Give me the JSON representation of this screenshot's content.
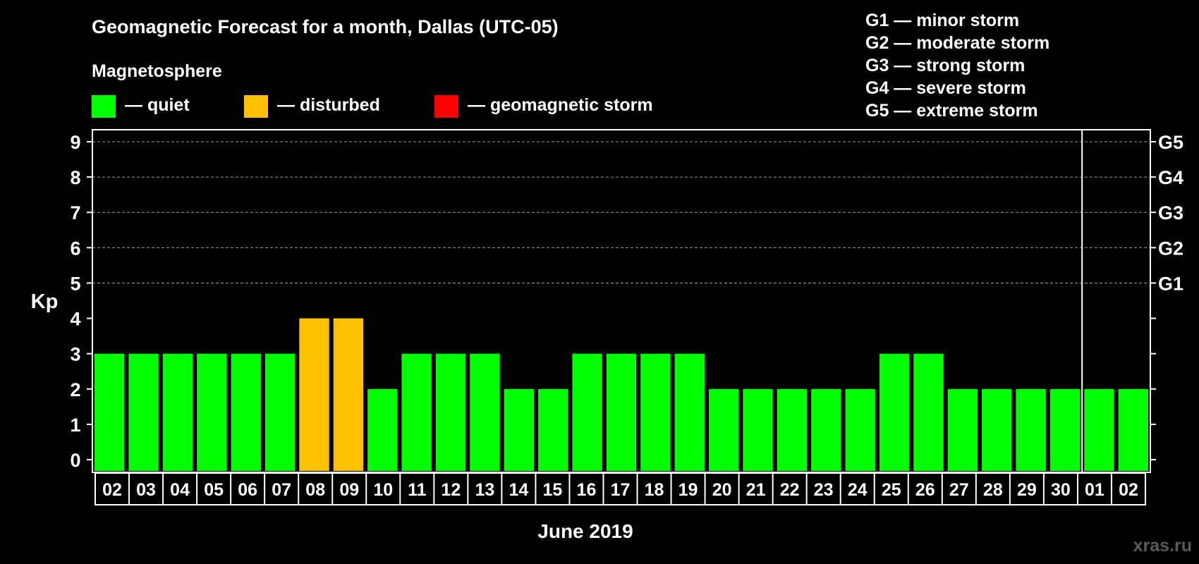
{
  "chart_data": {
    "type": "bar",
    "title": "Geomagnetic Forecast for a month, Dallas (UTC-05)",
    "legend_title": "Magnetosphere",
    "legend": [
      {
        "label": "— quiet",
        "color": "#00ff00"
      },
      {
        "label": "— disturbed",
        "color": "#ffc000"
      },
      {
        "label": "— geomagnetic storm",
        "color": "#ff0000"
      }
    ],
    "storm_scale": [
      "G1 — minor storm",
      "G2 — moderate storm",
      "G3 — strong storm",
      "G4 — severe storm",
      "G5 — extreme storm"
    ],
    "ylabel": "Kp",
    "xlabel": "June 2019",
    "ylim": [
      0,
      9
    ],
    "yticks": [
      "0",
      "1",
      "2",
      "3",
      "4",
      "5",
      "6",
      "7",
      "8",
      "9"
    ],
    "right_axis": [
      {
        "kp": 5,
        "label": "G1"
      },
      {
        "kp": 6,
        "label": "G2"
      },
      {
        "kp": 7,
        "label": "G3"
      },
      {
        "kp": 8,
        "label": "G4"
      },
      {
        "kp": 9,
        "label": "G5"
      }
    ],
    "grid_from_kp": 5,
    "categories": [
      "02",
      "03",
      "04",
      "05",
      "06",
      "07",
      "08",
      "09",
      "10",
      "11",
      "12",
      "13",
      "14",
      "15",
      "16",
      "17",
      "18",
      "19",
      "20",
      "21",
      "22",
      "23",
      "24",
      "25",
      "26",
      "27",
      "28",
      "29",
      "30",
      "01",
      "02"
    ],
    "values": [
      3,
      3,
      3,
      3,
      3,
      3,
      4,
      4,
      2,
      3,
      3,
      3,
      2,
      2,
      3,
      3,
      3,
      3,
      2,
      2,
      2,
      2,
      2,
      3,
      3,
      2,
      2,
      2,
      2,
      2,
      2
    ],
    "month_divider_after_index": 28,
    "colors": {
      "quiet": "#00ff00",
      "disturbed": "#ffc000",
      "storm": "#ff0000",
      "background": "#000000",
      "axis": "#ffffff",
      "grid": "#9a9a9a"
    }
  },
  "watermark": "xras.ru"
}
